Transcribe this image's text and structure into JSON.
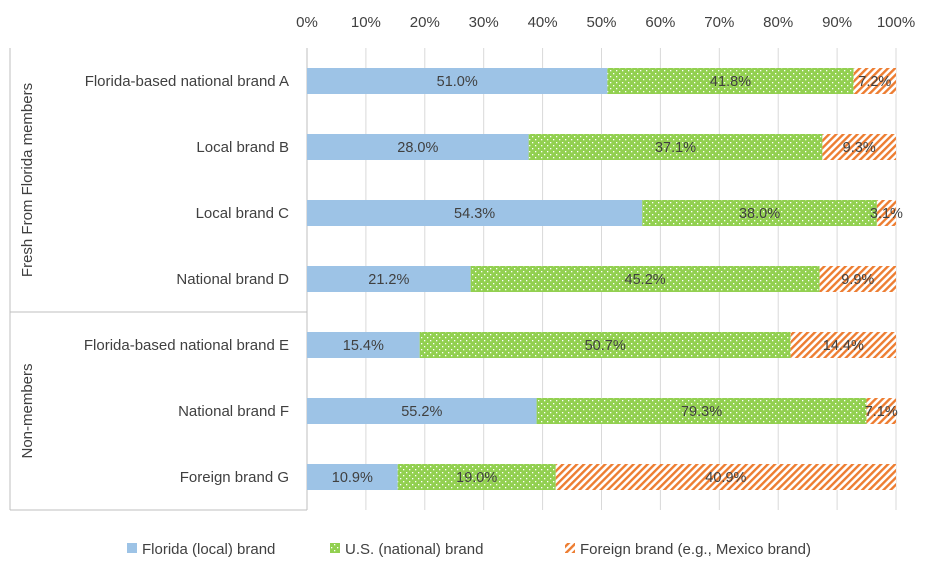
{
  "chart_data": {
    "type": "bar",
    "orientation": "horizontal",
    "stacking": "percent",
    "xlim": [
      0,
      100
    ],
    "x_ticks": [
      "0%",
      "10%",
      "20%",
      "30%",
      "40%",
      "50%",
      "60%",
      "70%",
      "80%",
      "90%",
      "100%"
    ],
    "grid": true,
    "legend_position": "bottom",
    "groups": [
      {
        "label": "Fresh From Florida members",
        "categories": [
          "Florida-based national brand A",
          "Local brand B",
          "Local brand C",
          "National brand D"
        ]
      },
      {
        "label": "Non-members",
        "categories": [
          "Florida-based national brand E",
          "National brand F",
          "Foreign brand G"
        ]
      }
    ],
    "categories": [
      "Florida-based national brand A",
      "Local brand B",
      "Local brand C",
      "National brand D",
      "Florida-based national brand E",
      "National brand F",
      "Foreign brand G"
    ],
    "series": [
      {
        "name": "Florida (local) brand",
        "color": "#9DC3E6",
        "values": [
          51.0,
          28.0,
          54.3,
          21.2,
          15.4,
          55.2,
          10.9
        ],
        "labels": [
          "51.0%",
          "28.0%",
          "54.3%",
          "21.2%",
          "15.4%",
          "55.2%",
          "10.9%"
        ]
      },
      {
        "name": "U.S. (national) brand",
        "color": "#92D050",
        "values": [
          41.8,
          37.1,
          38.0,
          45.2,
          50.7,
          79.3,
          19.0
        ],
        "labels": [
          "41.8%",
          "37.1%",
          "38.0%",
          "45.2%",
          "50.7%",
          "79.3%",
          "19.0%"
        ]
      },
      {
        "name": "Foreign brand (e.g., Mexico brand)",
        "color": "#ED7D31",
        "values": [
          7.2,
          9.3,
          3.1,
          9.9,
          14.4,
          7.1,
          40.9
        ],
        "labels": [
          "7.2%",
          "9.3%",
          "3.1%",
          "9.9%",
          "14.4%",
          "7.1%",
          "40.9%"
        ]
      }
    ]
  }
}
